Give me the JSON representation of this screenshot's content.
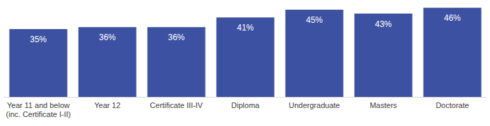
{
  "chart_data": {
    "type": "bar",
    "categories": [
      "Year 11 and below\n(inc. Certificate I-II)",
      "Year 12",
      "Certificate III-IV",
      "Diploma",
      "Undergraduate",
      "Masters",
      "Doctorate"
    ],
    "values": [
      35,
      36,
      36,
      41,
      45,
      43,
      46
    ],
    "value_labels": [
      "35%",
      "36%",
      "36%",
      "41%",
      "45%",
      "43%",
      "46%"
    ],
    "color": "#3d51a3",
    "ylim": [
      0,
      50
    ],
    "grid": false,
    "data_labels": true,
    "tick_labels": "x"
  }
}
